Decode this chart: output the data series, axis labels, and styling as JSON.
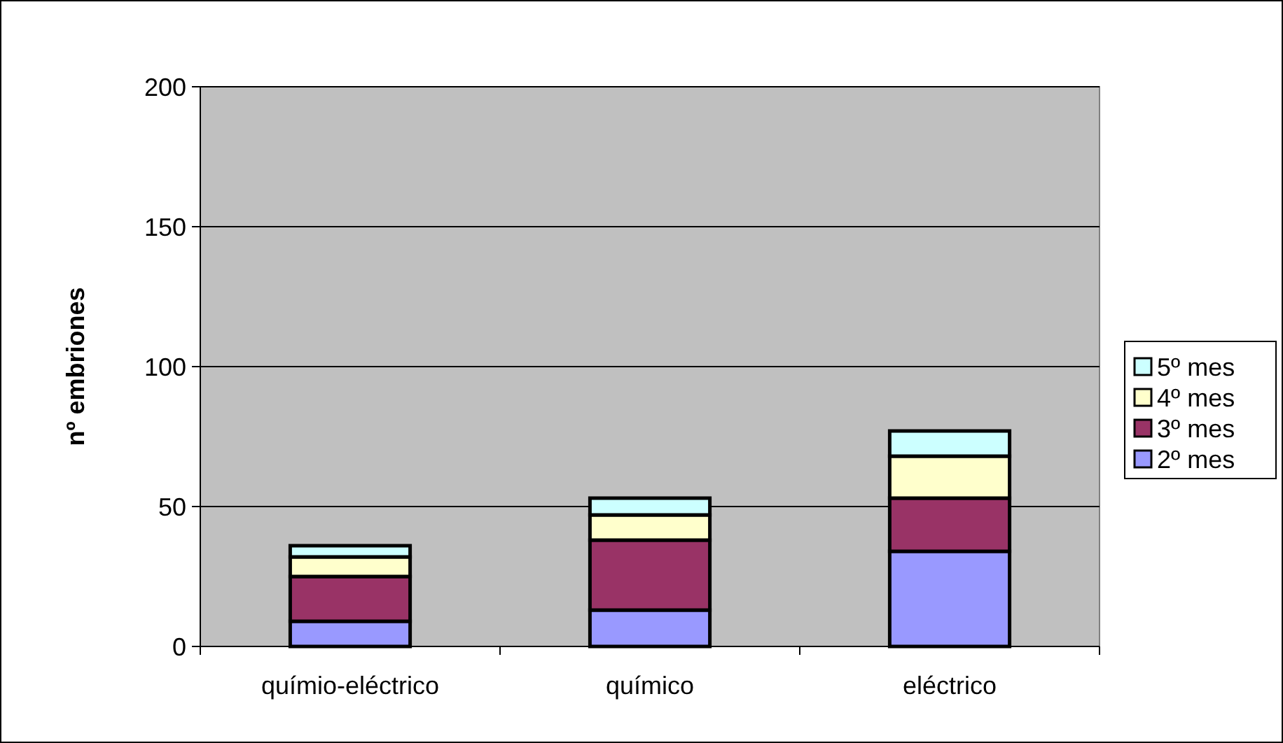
{
  "chart_data": {
    "type": "bar",
    "stacked": true,
    "ylabel": "nº embriones",
    "categories": [
      "químio-eléctrico",
      "químico",
      "eléctrico"
    ],
    "series": [
      {
        "name": "2º mes",
        "color": "#9999ff",
        "values": [
          9,
          13,
          34
        ]
      },
      {
        "name": "3º mes",
        "color": "#993366",
        "values": [
          16,
          25,
          19
        ]
      },
      {
        "name": "4º mes",
        "color": "#ffffcc",
        "values": [
          7,
          9,
          15
        ]
      },
      {
        "name": "5º mes",
        "color": "#ccffff",
        "values": [
          4,
          6,
          9
        ]
      }
    ],
    "ylim": [
      0,
      200
    ],
    "yticks": [
      0,
      50,
      100,
      150,
      200
    ],
    "grid": "y",
    "legend": "right"
  }
}
